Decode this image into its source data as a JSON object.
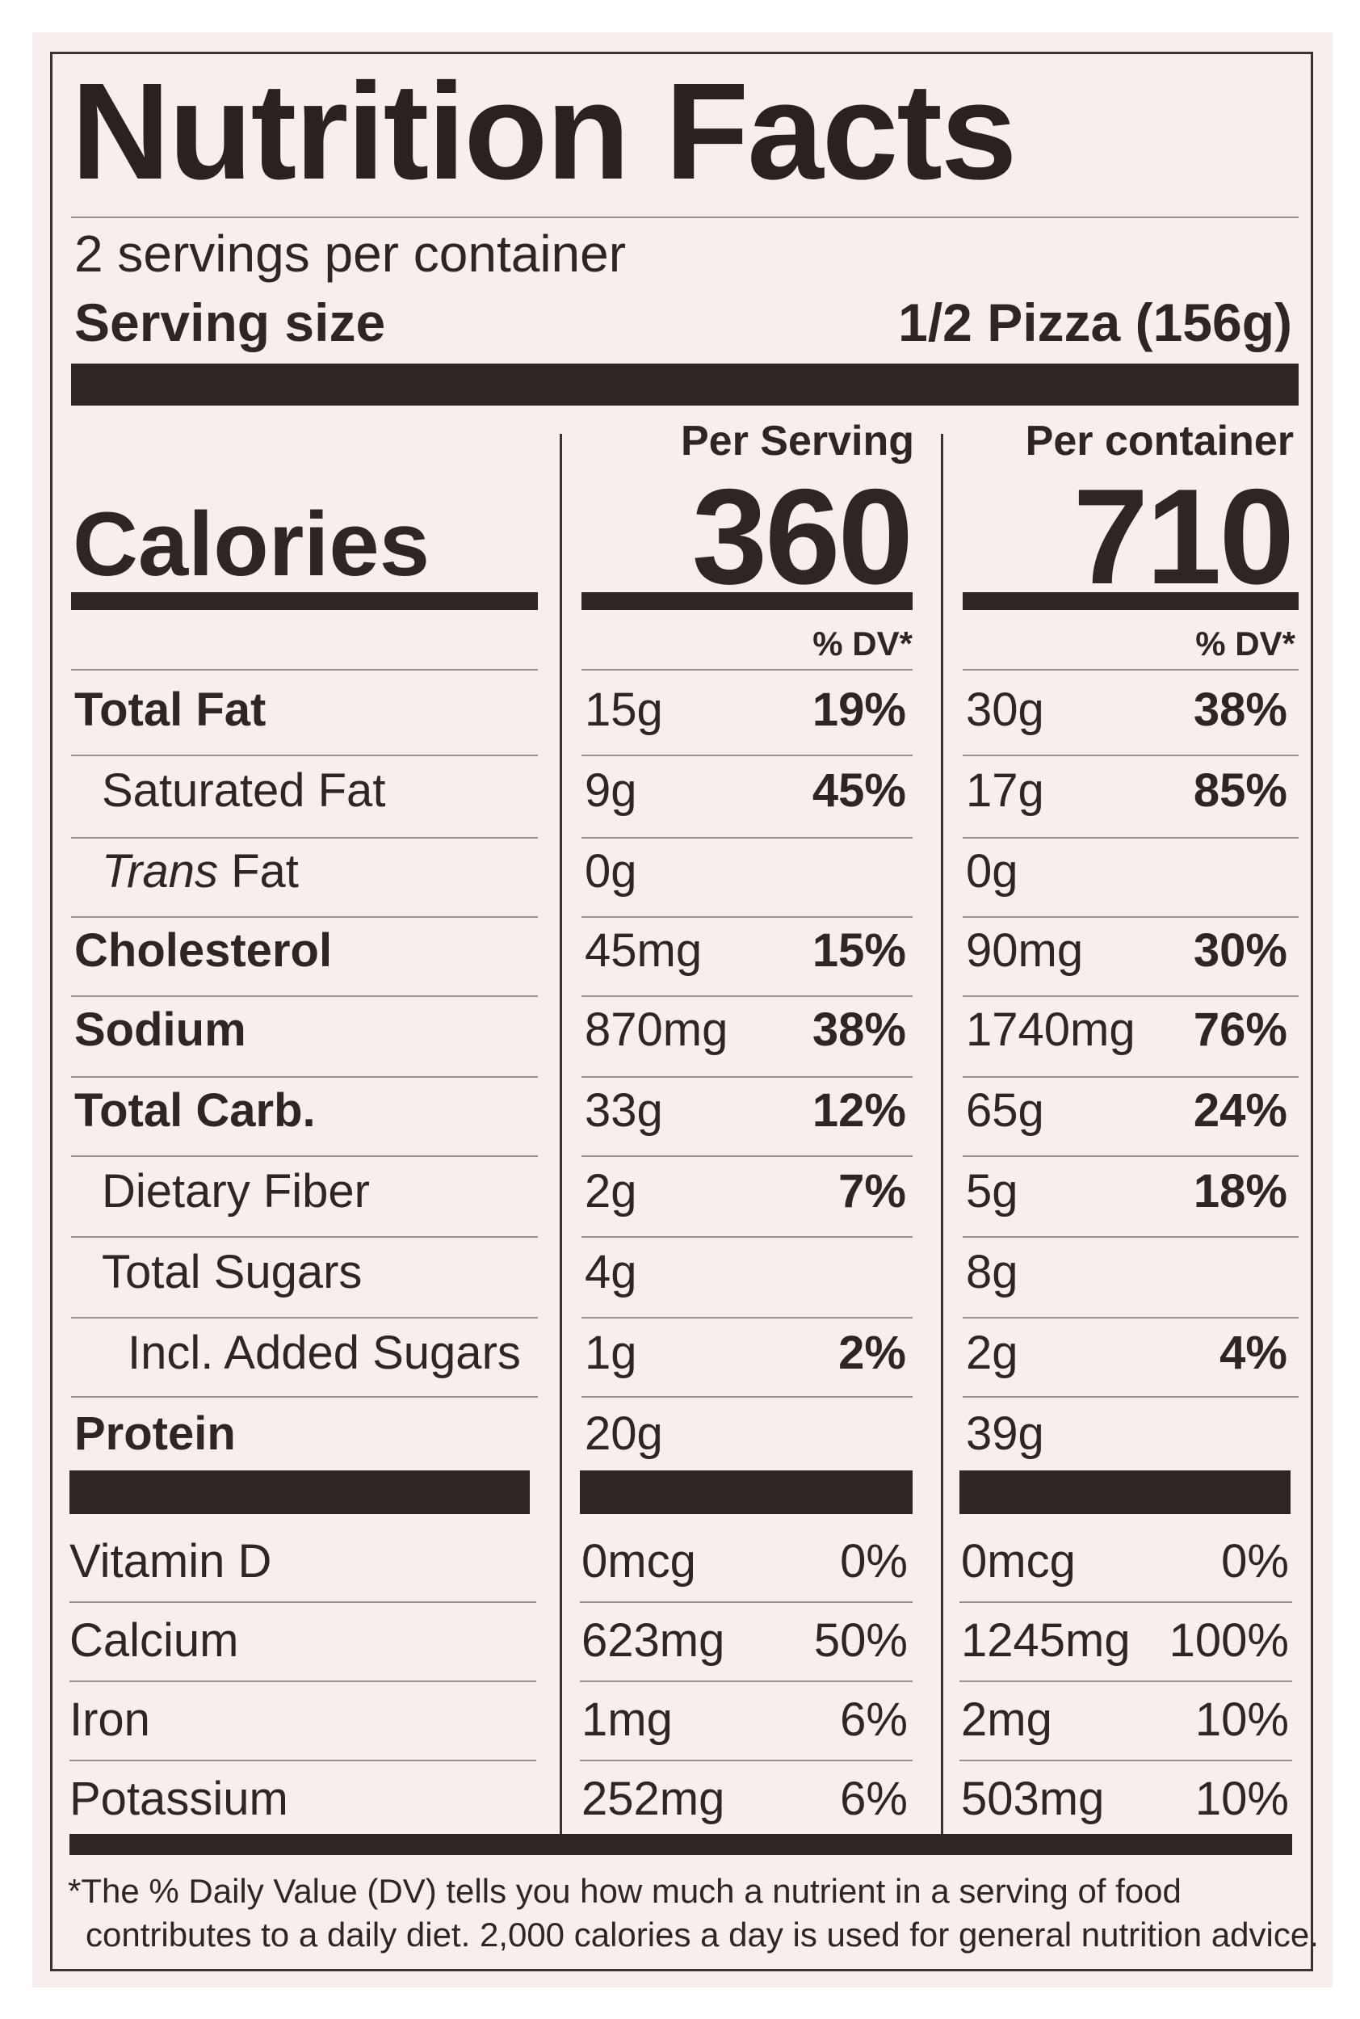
{
  "title": "Nutrition Facts",
  "servings_per_container": "2 servings per container",
  "serving_size_label": "Serving size",
  "serving_size_value": "1/2 Pizza (156g)",
  "calories_label": "Calories",
  "col1": {
    "header": "Per Serving",
    "calories": "360",
    "dv_header": "% DV*"
  },
  "col2": {
    "header": "Per container",
    "calories": "710",
    "dv_header": "% DV*"
  },
  "nutrients": [
    {
      "label": "Total Fat",
      "style": "bold",
      "indent": 0,
      "c1_amount": "15g",
      "c1_dv": "19%",
      "c2_amount": "30g",
      "c2_dv": "38%"
    },
    {
      "label_prefix": "",
      "label": "Saturated Fat",
      "style": "normal",
      "indent": 1,
      "c1_amount": "9g",
      "c1_dv": "45%",
      "c2_amount": "17g",
      "c2_dv": "85%"
    },
    {
      "label_italic": "Trans",
      "label": " Fat",
      "style": "normal",
      "indent": 1,
      "c1_amount": "0g",
      "c1_dv": "",
      "c2_amount": "0g",
      "c2_dv": ""
    },
    {
      "label": "Cholesterol",
      "style": "bold",
      "indent": 0,
      "c1_amount": "45mg",
      "c1_dv": "15%",
      "c2_amount": "90mg",
      "c2_dv": "30%"
    },
    {
      "label": "Sodium",
      "style": "bold",
      "indent": 0,
      "c1_amount": "870mg",
      "c1_dv": "38%",
      "c2_amount": "1740mg",
      "c2_dv": "76%"
    },
    {
      "label": "Total Carb.",
      "style": "bold",
      "indent": 0,
      "c1_amount": "33g",
      "c1_dv": "12%",
      "c2_amount": "65g",
      "c2_dv": "24%"
    },
    {
      "label": "Dietary Fiber",
      "style": "normal",
      "indent": 1,
      "c1_amount": "2g",
      "c1_dv": "7%",
      "c2_amount": "5g",
      "c2_dv": "18%"
    },
    {
      "label": "Total Sugars",
      "style": "normal",
      "indent": 1,
      "c1_amount": "4g",
      "c1_dv": "",
      "c2_amount": "8g",
      "c2_dv": ""
    },
    {
      "label": "Incl. Added Sugars",
      "style": "normal",
      "indent": 2,
      "c1_amount": "1g",
      "c1_dv": "2%",
      "c2_amount": "2g",
      "c2_dv": "4%"
    },
    {
      "label": "Protein",
      "style": "bold",
      "indent": 0,
      "c1_amount": "20g",
      "c1_dv": "",
      "c2_amount": "39g",
      "c2_dv": ""
    }
  ],
  "vitamins": [
    {
      "label": "Vitamin D",
      "c1_amount": "0mcg",
      "c1_dv": "0%",
      "c2_amount": "0mcg",
      "c2_dv": "0%"
    },
    {
      "label": "Calcium",
      "c1_amount": "623mg",
      "c1_dv": "50%",
      "c2_amount": "1245mg",
      "c2_dv": "100%"
    },
    {
      "label": "Iron",
      "c1_amount": "1mg",
      "c1_dv": "6%",
      "c2_amount": "2mg",
      "c2_dv": "10%"
    },
    {
      "label": "Potassium",
      "c1_amount": "252mg",
      "c1_dv": "6%",
      "c2_amount": "503mg",
      "c2_dv": "10%"
    }
  ],
  "footnote_line1": "*The % Daily Value (DV) tells you how much a nutrient in a serving of food",
  "footnote_line2": "contributes to a daily diet. 2,000 calories a day is used for general nutrition advice."
}
